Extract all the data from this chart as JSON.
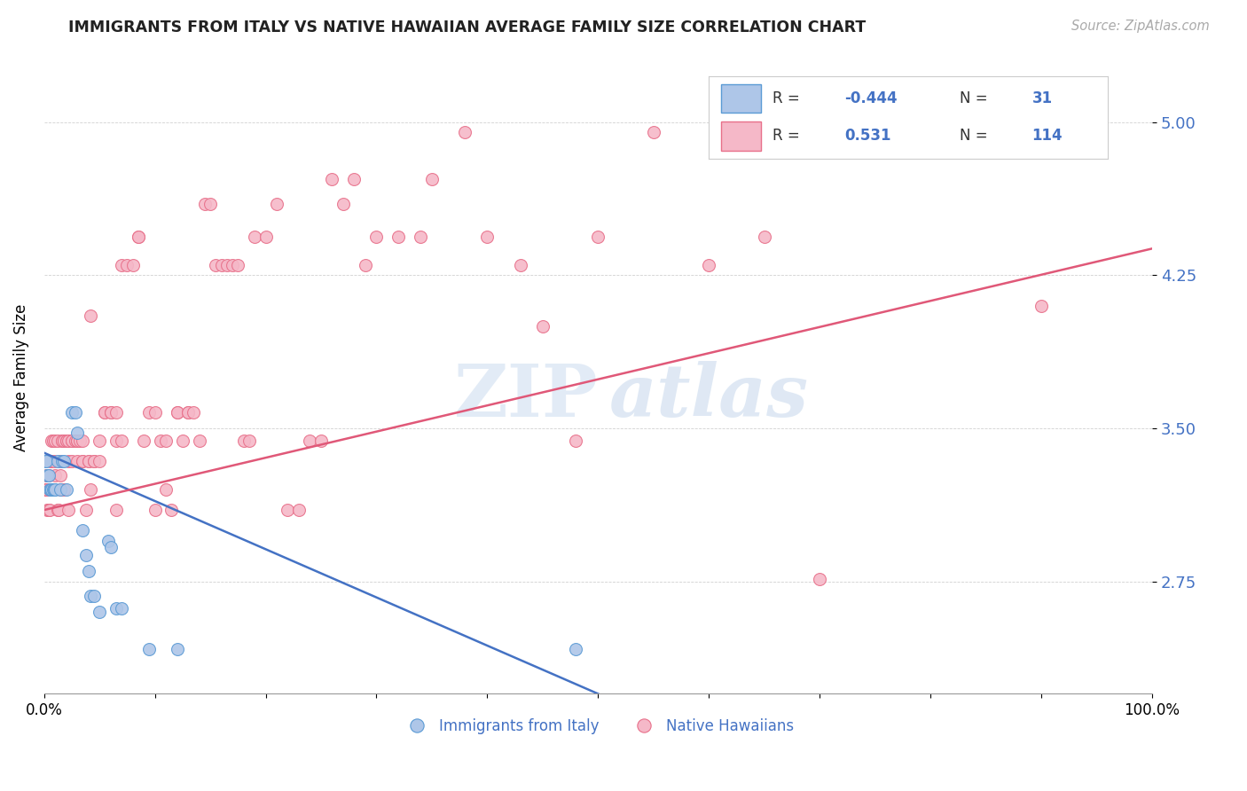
{
  "title": "IMMIGRANTS FROM ITALY VS NATIVE HAWAIIAN AVERAGE FAMILY SIZE CORRELATION CHART",
  "source": "Source: ZipAtlas.com",
  "ylabel": "Average Family Size",
  "yticks": [
    2.75,
    3.5,
    4.25,
    5.0
  ],
  "xlim": [
    0.0,
    1.0
  ],
  "ylim": [
    2.2,
    5.3
  ],
  "blue_color": "#aec6e8",
  "pink_color": "#f5b8c8",
  "blue_edge_color": "#5b9bd5",
  "pink_edge_color": "#e8708a",
  "blue_line_color": "#4472c4",
  "pink_line_color": "#e05878",
  "blue_scatter": [
    [
      0.001,
      3.34
    ],
    [
      0.002,
      3.34
    ],
    [
      0.003,
      3.27
    ],
    [
      0.004,
      3.27
    ],
    [
      0.005,
      3.2
    ],
    [
      0.006,
      3.2
    ],
    [
      0.007,
      3.2
    ],
    [
      0.008,
      3.2
    ],
    [
      0.009,
      3.2
    ],
    [
      0.01,
      3.2
    ],
    [
      0.012,
      3.34
    ],
    [
      0.015,
      3.2
    ],
    [
      0.016,
      3.34
    ],
    [
      0.018,
      3.34
    ],
    [
      0.02,
      3.2
    ],
    [
      0.025,
      3.58
    ],
    [
      0.028,
      3.58
    ],
    [
      0.03,
      3.48
    ],
    [
      0.035,
      3.0
    ],
    [
      0.038,
      2.88
    ],
    [
      0.04,
      2.8
    ],
    [
      0.042,
      2.68
    ],
    [
      0.045,
      2.68
    ],
    [
      0.05,
      2.6
    ],
    [
      0.058,
      2.95
    ],
    [
      0.06,
      2.92
    ],
    [
      0.065,
      2.62
    ],
    [
      0.07,
      2.62
    ],
    [
      0.095,
      2.42
    ],
    [
      0.12,
      2.42
    ],
    [
      0.48,
      2.42
    ]
  ],
  "pink_scatter": [
    [
      0.001,
      3.2
    ],
    [
      0.001,
      3.2
    ],
    [
      0.002,
      3.27
    ],
    [
      0.002,
      3.2
    ],
    [
      0.003,
      3.2
    ],
    [
      0.003,
      3.1
    ],
    [
      0.004,
      3.27
    ],
    [
      0.004,
      3.1
    ],
    [
      0.005,
      3.1
    ],
    [
      0.005,
      3.2
    ],
    [
      0.006,
      3.34
    ],
    [
      0.006,
      3.34
    ],
    [
      0.007,
      3.44
    ],
    [
      0.008,
      3.44
    ],
    [
      0.008,
      3.2
    ],
    [
      0.009,
      3.34
    ],
    [
      0.01,
      3.44
    ],
    [
      0.01,
      3.27
    ],
    [
      0.012,
      3.44
    ],
    [
      0.012,
      3.1
    ],
    [
      0.013,
      3.1
    ],
    [
      0.014,
      3.34
    ],
    [
      0.015,
      3.27
    ],
    [
      0.015,
      3.2
    ],
    [
      0.016,
      3.44
    ],
    [
      0.016,
      3.44
    ],
    [
      0.018,
      3.44
    ],
    [
      0.018,
      3.2
    ],
    [
      0.02,
      3.44
    ],
    [
      0.02,
      3.44
    ],
    [
      0.022,
      3.44
    ],
    [
      0.022,
      3.34
    ],
    [
      0.022,
      3.1
    ],
    [
      0.025,
      3.44
    ],
    [
      0.025,
      3.44
    ],
    [
      0.025,
      3.34
    ],
    [
      0.028,
      3.44
    ],
    [
      0.03,
      3.34
    ],
    [
      0.03,
      3.44
    ],
    [
      0.03,
      3.44
    ],
    [
      0.032,
      3.44
    ],
    [
      0.035,
      3.34
    ],
    [
      0.035,
      3.44
    ],
    [
      0.035,
      3.34
    ],
    [
      0.038,
      3.1
    ],
    [
      0.04,
      3.34
    ],
    [
      0.04,
      3.34
    ],
    [
      0.042,
      4.05
    ],
    [
      0.042,
      3.2
    ],
    [
      0.045,
      3.34
    ],
    [
      0.045,
      3.34
    ],
    [
      0.05,
      3.44
    ],
    [
      0.05,
      3.34
    ],
    [
      0.055,
      3.58
    ],
    [
      0.055,
      3.58
    ],
    [
      0.06,
      3.58
    ],
    [
      0.06,
      3.58
    ],
    [
      0.065,
      3.58
    ],
    [
      0.065,
      3.44
    ],
    [
      0.065,
      3.1
    ],
    [
      0.07,
      3.44
    ],
    [
      0.07,
      4.3
    ],
    [
      0.075,
      4.3
    ],
    [
      0.08,
      4.3
    ],
    [
      0.085,
      4.44
    ],
    [
      0.085,
      4.44
    ],
    [
      0.09,
      3.44
    ],
    [
      0.095,
      3.58
    ],
    [
      0.1,
      3.58
    ],
    [
      0.1,
      3.1
    ],
    [
      0.105,
      3.44
    ],
    [
      0.11,
      3.44
    ],
    [
      0.11,
      3.2
    ],
    [
      0.115,
      3.1
    ],
    [
      0.12,
      3.58
    ],
    [
      0.12,
      3.58
    ],
    [
      0.125,
      3.44
    ],
    [
      0.13,
      3.58
    ],
    [
      0.13,
      3.58
    ],
    [
      0.135,
      3.58
    ],
    [
      0.14,
      3.44
    ],
    [
      0.145,
      4.6
    ],
    [
      0.15,
      4.6
    ],
    [
      0.155,
      4.3
    ],
    [
      0.16,
      4.3
    ],
    [
      0.165,
      4.3
    ],
    [
      0.17,
      4.3
    ],
    [
      0.175,
      4.3
    ],
    [
      0.18,
      3.44
    ],
    [
      0.185,
      3.44
    ],
    [
      0.19,
      4.44
    ],
    [
      0.2,
      4.44
    ],
    [
      0.21,
      4.6
    ],
    [
      0.22,
      3.1
    ],
    [
      0.23,
      3.1
    ],
    [
      0.24,
      3.44
    ],
    [
      0.25,
      3.44
    ],
    [
      0.26,
      4.72
    ],
    [
      0.27,
      4.6
    ],
    [
      0.28,
      4.72
    ],
    [
      0.29,
      4.3
    ],
    [
      0.3,
      4.44
    ],
    [
      0.32,
      4.44
    ],
    [
      0.34,
      4.44
    ],
    [
      0.35,
      4.72
    ],
    [
      0.38,
      4.95
    ],
    [
      0.4,
      4.44
    ],
    [
      0.43,
      4.3
    ],
    [
      0.45,
      4.0
    ],
    [
      0.48,
      3.44
    ],
    [
      0.5,
      4.44
    ],
    [
      0.55,
      4.95
    ],
    [
      0.6,
      4.3
    ],
    [
      0.65,
      4.44
    ],
    [
      0.7,
      2.76
    ],
    [
      0.9,
      4.1
    ]
  ],
  "blue_line": [
    [
      0.0,
      3.38
    ],
    [
      0.5,
      2.2
    ]
  ],
  "pink_line": [
    [
      0.0,
      3.1
    ],
    [
      1.0,
      4.38
    ]
  ],
  "watermark_zip": "ZIP",
  "watermark_atlas": "atlas"
}
